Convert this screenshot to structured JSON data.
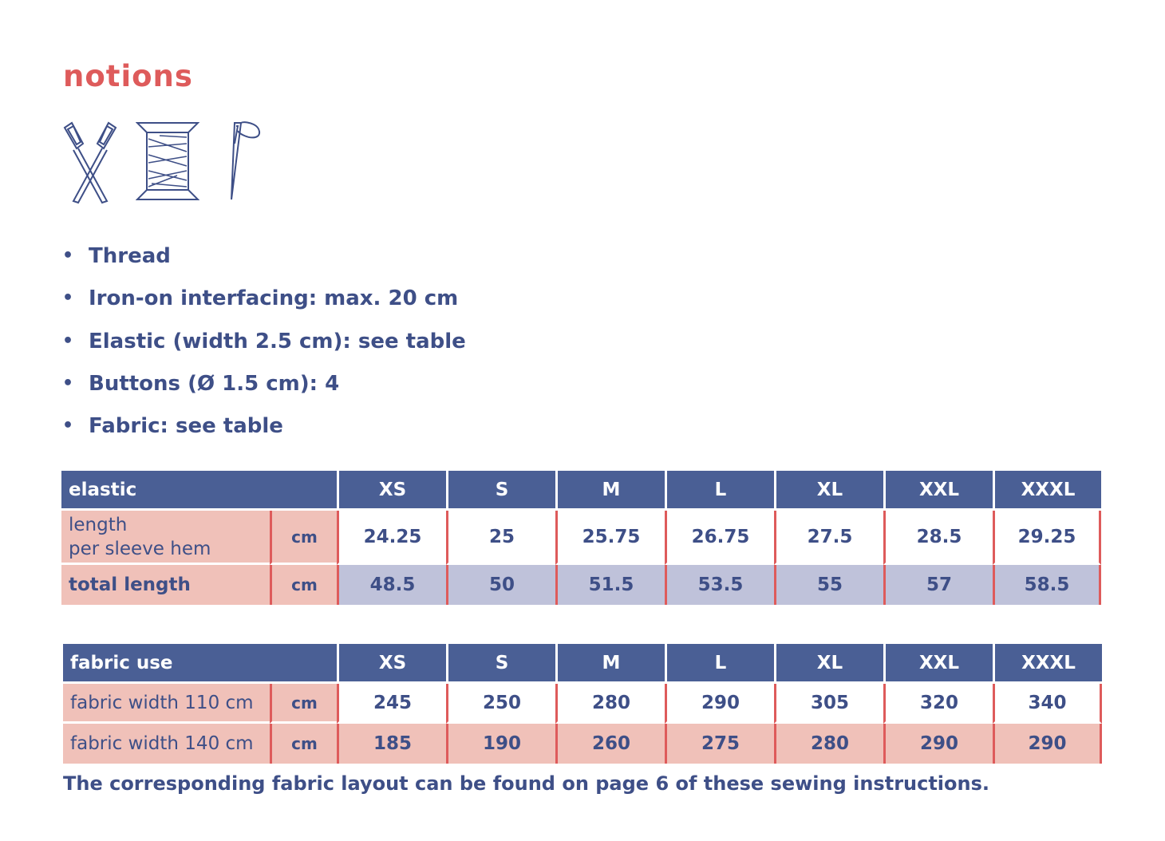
{
  "title": "notions",
  "icons": [
    "scissors-icon",
    "thread-spool-icon",
    "needle-icon"
  ],
  "notions": [
    "Thread",
    "Iron-on interfacing: max. 20 cm",
    "Elastic (width 2.5 cm): see table",
    "Buttons (Ø 1.5 cm): 4",
    "Fabric: see table"
  ],
  "sizes": [
    "XS",
    "S",
    "M",
    "L",
    "XL",
    "XXL",
    "XXXL"
  ],
  "elastic": {
    "header": "elastic",
    "rows": [
      {
        "label_line1": "length",
        "label_line2": "per sleeve hem",
        "unit": "cm",
        "values": [
          "24.25",
          "25",
          "25.75",
          "26.75",
          "27.5",
          "28.5",
          "29.25"
        ]
      },
      {
        "label": "total length",
        "unit": "cm",
        "values": [
          "48.5",
          "50",
          "51.5",
          "53.5",
          "55",
          "57",
          "58.5"
        ]
      }
    ]
  },
  "fabric": {
    "header": "fabric use",
    "rows": [
      {
        "label": "fabric width 110 cm",
        "unit": "cm",
        "values": [
          "245",
          "250",
          "280",
          "290",
          "305",
          "320",
          "340"
        ]
      },
      {
        "label": "fabric width 140 cm",
        "unit": "cm",
        "values": [
          "185",
          "190",
          "260",
          "275",
          "280",
          "290",
          "290"
        ]
      }
    ]
  },
  "footnote": "The corresponding fabric layout can be found on page 6 of these sewing instructions.",
  "colors": {
    "accent": "#de5b5b",
    "text": "#3e4f87",
    "header_bg": "#4a5f95",
    "pink": "#f0c1b9",
    "lavender": "#bfc2da"
  }
}
